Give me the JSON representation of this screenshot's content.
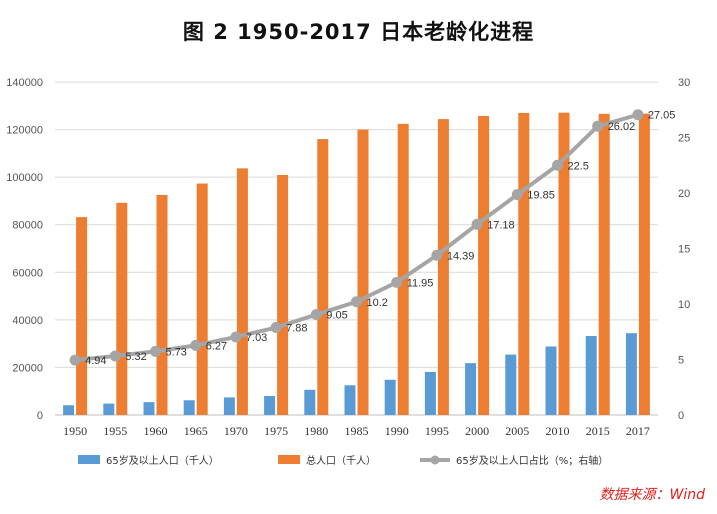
{
  "title": "图 2   1950-2017 日本老龄化进程",
  "source": "数据来源：Wind",
  "colors": {
    "elderly": "#5b9bd5",
    "total": "#ed7d31",
    "ratio": "#a5a5a5"
  },
  "chart_data": {
    "type": "bar",
    "categories": [
      "1950",
      "1955",
      "1960",
      "1965",
      "1970",
      "1975",
      "1980",
      "1985",
      "1990",
      "1995",
      "2000",
      "2005",
      "2010",
      "2015",
      "2017"
    ],
    "series": [
      {
        "name": "65岁及以上人口（千人）",
        "type": "bar",
        "axis": "left",
        "values": [
          4100,
          4800,
          5400,
          6200,
          7400,
          8000,
          10600,
          12500,
          14800,
          18100,
          21800,
          25400,
          28800,
          33200,
          34400
        ]
      },
      {
        "name": "总人口（千人）",
        "type": "bar",
        "axis": "left",
        "values": [
          83200,
          89200,
          92500,
          97300,
          103700,
          100900,
          116000,
          120000,
          122400,
          124400,
          125700,
          127000,
          127100,
          126600,
          126700
        ]
      },
      {
        "name": "65岁及以上人口占比（%；右轴）",
        "type": "line",
        "axis": "right",
        "values": [
          4.94,
          5.32,
          5.73,
          6.27,
          7.03,
          7.88,
          9.05,
          10.2,
          11.95,
          14.39,
          17.18,
          19.85,
          22.5,
          26.02,
          27.05
        ],
        "labels": [
          "4.94",
          "5.32",
          "5.73",
          "6.27",
          "7.03",
          "7.88",
          "9.05",
          "10.2",
          "11.95",
          "14.39",
          "17.18",
          "19.85",
          "22.5",
          "26.02",
          "27.05"
        ]
      }
    ],
    "y_left": {
      "ylim": [
        0,
        140000
      ],
      "ticks": [
        "0",
        "20000",
        "40000",
        "60000",
        "80000",
        "100000",
        "120000",
        "140000"
      ]
    },
    "y_right": {
      "ylim": [
        0,
        30
      ],
      "ticks": [
        "0",
        "5",
        "10",
        "15",
        "20",
        "25",
        "30"
      ]
    },
    "grid": true,
    "legend": "bottom"
  }
}
